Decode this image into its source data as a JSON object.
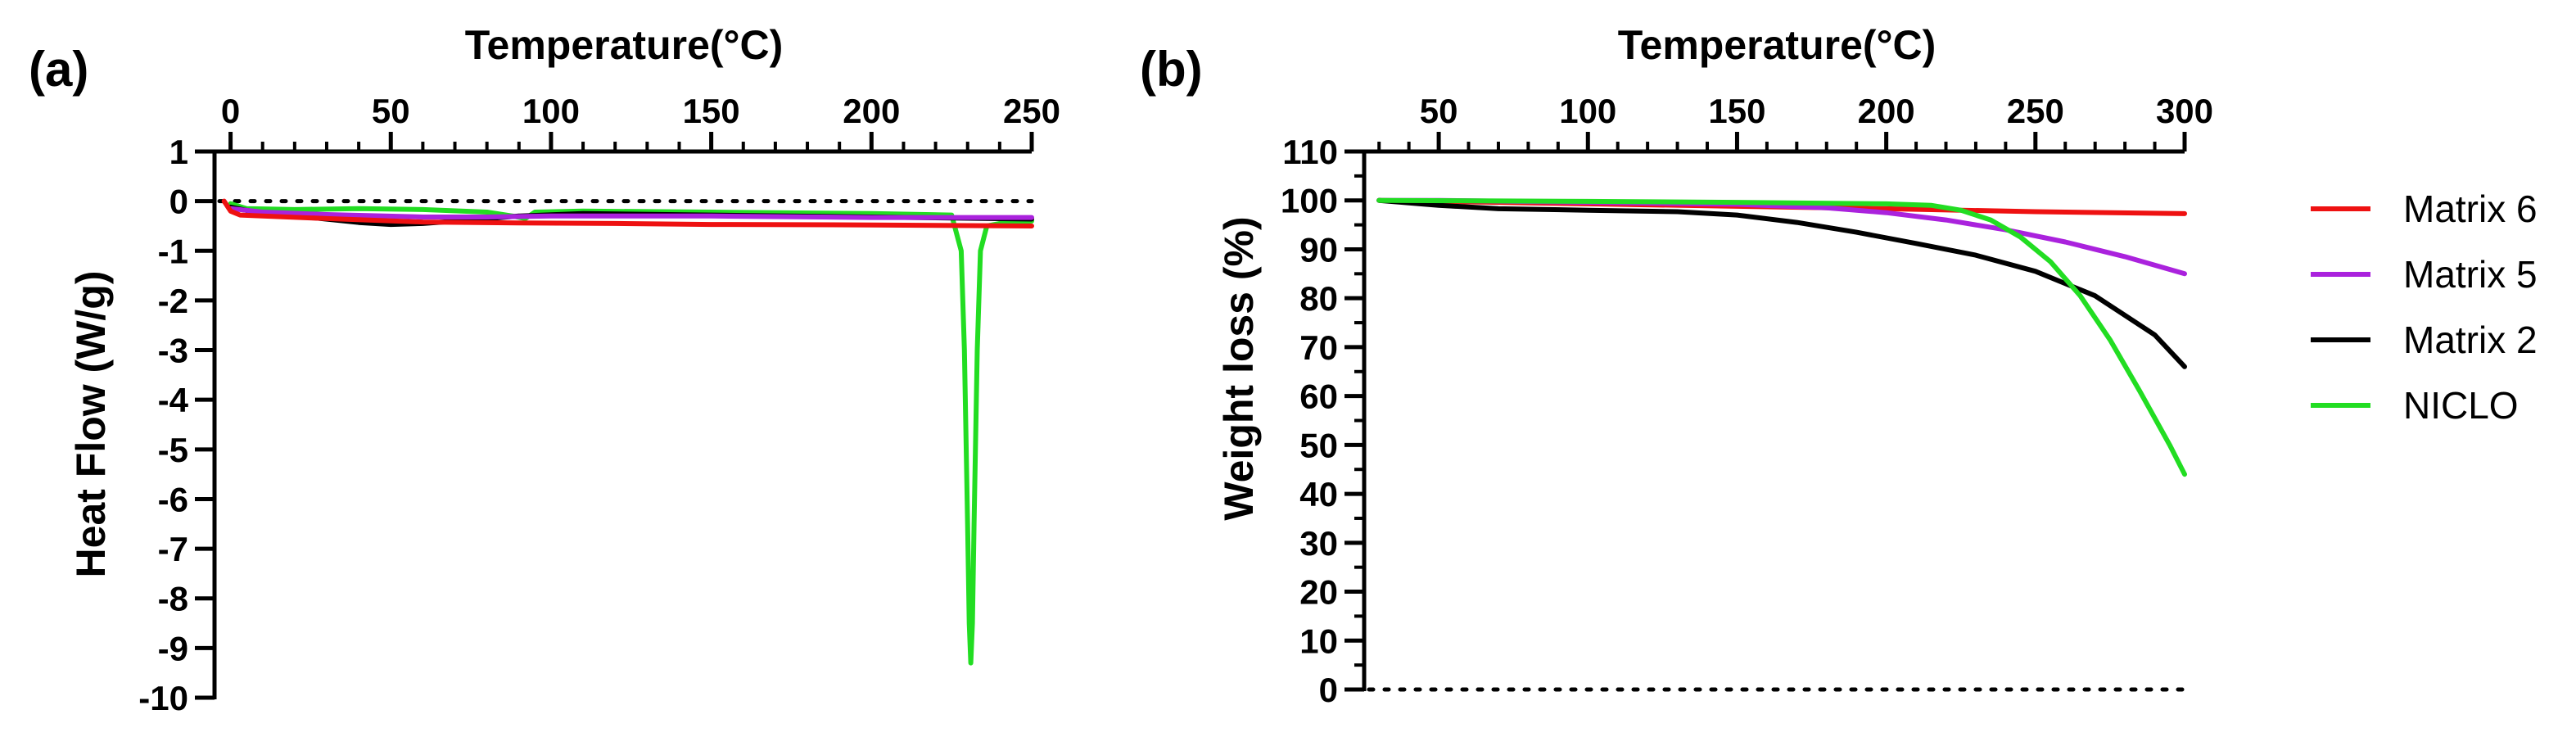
{
  "chart_data": [
    {
      "type": "line",
      "panel_label": "(a)",
      "title": "",
      "xlabel": "Temperature(°C)",
      "ylabel": "Heat Flow (W/g)",
      "xlim": [
        -5,
        250
      ],
      "ylim": [
        -10,
        1
      ],
      "x_axis_position": "top",
      "xticks": [
        0,
        50,
        100,
        150,
        200,
        250
      ],
      "yticks": [
        1,
        0,
        -1,
        -2,
        -3,
        -4,
        -5,
        -6,
        -7,
        -8,
        -9,
        -10
      ],
      "xtick_labels": [
        "0",
        "50",
        "100",
        "150",
        "200",
        "250"
      ],
      "ytick_labels": [
        "1",
        "0",
        "-1",
        "-2",
        "-3",
        "-4",
        "-5",
        "-6",
        "-7",
        "-8",
        "-9",
        "-10"
      ],
      "reference_line": {
        "y": 0,
        "style": "dotted"
      },
      "grid": false,
      "series": [
        {
          "name": "NICLO",
          "color": "#22dd22",
          "x": [
            0,
            5,
            20,
            40,
            60,
            80,
            88,
            92,
            95,
            110,
            150,
            200,
            225,
            228,
            229,
            230,
            230.5,
            231,
            231.5,
            232,
            233,
            234,
            236,
            240,
            250
          ],
          "y": [
            -0.05,
            -0.15,
            -0.17,
            -0.15,
            -0.17,
            -0.22,
            -0.3,
            -0.35,
            -0.22,
            -0.2,
            -0.22,
            -0.25,
            -0.28,
            -1.0,
            -3.0,
            -6.5,
            -8.5,
            -9.3,
            -8.5,
            -6.5,
            -3.0,
            -1.0,
            -0.5,
            -0.45,
            -0.4
          ]
        },
        {
          "name": "Matrix 2",
          "color": "#000000",
          "x": [
            0,
            10,
            25,
            40,
            50,
            60,
            75,
            90,
            110,
            150,
            200,
            250
          ],
          "y": [
            -0.12,
            -0.25,
            -0.33,
            -0.43,
            -0.47,
            -0.45,
            -0.38,
            -0.3,
            -0.25,
            -0.28,
            -0.32,
            -0.36
          ]
        },
        {
          "name": "Matrix 5",
          "color": "#aa22dd",
          "x": [
            0,
            10,
            30,
            60,
            80,
            100,
            150,
            200,
            250
          ],
          "y": [
            -0.15,
            -0.22,
            -0.27,
            -0.32,
            -0.32,
            -0.3,
            -0.3,
            -0.33,
            -0.33
          ]
        },
        {
          "name": "Matrix 6",
          "color": "#ee1111",
          "x": [
            -2,
            0,
            3,
            10,
            30,
            60,
            90,
            120,
            150,
            200,
            250
          ],
          "y": [
            0.0,
            -0.2,
            -0.28,
            -0.3,
            -0.35,
            -0.42,
            -0.44,
            -0.45,
            -0.47,
            -0.48,
            -0.5
          ]
        }
      ]
    },
    {
      "type": "line",
      "panel_label": "(b)",
      "title": "",
      "xlabel": "Temperature(°C)",
      "ylabel": "Weight loss (%)",
      "xlim": [
        25,
        300
      ],
      "ylim": [
        0,
        110
      ],
      "x_axis_position": "top",
      "xticks": [
        50,
        100,
        150,
        200,
        250,
        300
      ],
      "yticks": [
        110,
        100,
        90,
        80,
        70,
        60,
        50,
        40,
        30,
        20,
        10,
        0
      ],
      "xtick_labels": [
        "50",
        "100",
        "150",
        "200",
        "250",
        "300"
      ],
      "ytick_labels": [
        "110",
        "100",
        "90",
        "80",
        "70",
        "60",
        "50",
        "40",
        "30",
        "20",
        "10",
        "0"
      ],
      "reference_line": {
        "y": 0,
        "style": "dotted"
      },
      "grid": false,
      "legend_position": "right",
      "series": [
        {
          "name": "Matrix 6",
          "color": "#ee1111",
          "x": [
            30,
            50,
            100,
            150,
            200,
            250,
            300
          ],
          "y": [
            100,
            99.8,
            99.3,
            98.8,
            98.3,
            97.7,
            97.3
          ]
        },
        {
          "name": "Matrix 5",
          "color": "#aa22dd",
          "x": [
            30,
            50,
            100,
            150,
            180,
            200,
            220,
            240,
            260,
            280,
            300
          ],
          "y": [
            100,
            100,
            99.6,
            99.2,
            98.5,
            97.5,
            96,
            94,
            91.5,
            88.5,
            85
          ]
        },
        {
          "name": "Matrix 2",
          "color": "#000000",
          "x": [
            30,
            50,
            70,
            100,
            130,
            150,
            170,
            190,
            210,
            230,
            250,
            270,
            290,
            300
          ],
          "y": [
            100,
            99,
            98.3,
            98,
            97.7,
            97,
            95.5,
            93.5,
            91.2,
            88.8,
            85.5,
            80.5,
            72.5,
            66
          ]
        },
        {
          "name": "NICLO",
          "color": "#22dd22",
          "x": [
            30,
            100,
            150,
            200,
            215,
            225,
            235,
            245,
            255,
            265,
            275,
            285,
            295,
            300
          ],
          "y": [
            100,
            99.8,
            99.6,
            99.3,
            99,
            98,
            96,
            92.5,
            87.5,
            80.5,
            71.5,
            61,
            50,
            44
          ]
        }
      ]
    }
  ],
  "legend": {
    "items": [
      {
        "label": "Matrix 6",
        "color": "#ee1111"
      },
      {
        "label": "Matrix 5",
        "color": "#aa22dd"
      },
      {
        "label": "Matrix 2",
        "color": "#000000"
      },
      {
        "label": "NICLO",
        "color": "#22dd22"
      }
    ]
  }
}
